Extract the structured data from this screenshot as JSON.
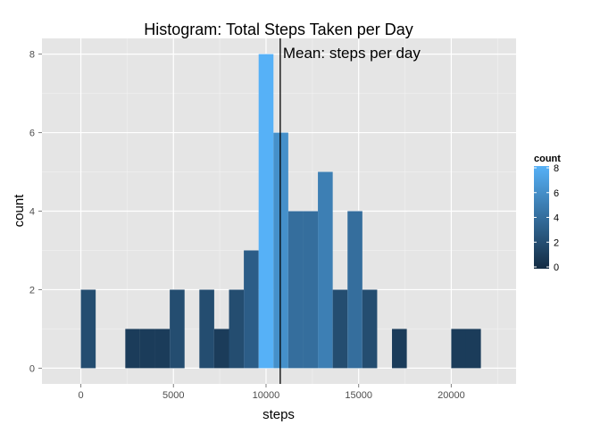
{
  "chart_data": {
    "type": "bar",
    "title": "Histogram: Total Steps Taken per Day",
    "xlabel": "steps",
    "ylabel": "count",
    "xlim": [
      -2100,
      23500
    ],
    "ylim": [
      -0.4,
      8.4
    ],
    "x_ticks": [
      0,
      5000,
      10000,
      15000,
      20000
    ],
    "x_tick_labels": [
      "0",
      "5000",
      "10000",
      "15000",
      "20000"
    ],
    "y_ticks": [
      0,
      2,
      4,
      6,
      8
    ],
    "y_tick_labels": [
      "0",
      "2",
      "4",
      "6",
      "8"
    ],
    "bin_width": 800,
    "bins": [
      {
        "x0": 0,
        "x1": 800,
        "count": 2
      },
      {
        "x0": 2400,
        "x1": 3200,
        "count": 1
      },
      {
        "x0": 3200,
        "x1": 4000,
        "count": 1
      },
      {
        "x0": 4000,
        "x1": 4800,
        "count": 1
      },
      {
        "x0": 4800,
        "x1": 5600,
        "count": 2
      },
      {
        "x0": 6400,
        "x1": 7200,
        "count": 2
      },
      {
        "x0": 7200,
        "x1": 8000,
        "count": 1
      },
      {
        "x0": 8000,
        "x1": 8800,
        "count": 2
      },
      {
        "x0": 8800,
        "x1": 9600,
        "count": 3
      },
      {
        "x0": 9600,
        "x1": 10400,
        "count": 8
      },
      {
        "x0": 10400,
        "x1": 11200,
        "count": 6
      },
      {
        "x0": 11200,
        "x1": 12000,
        "count": 4
      },
      {
        "x0": 12000,
        "x1": 12800,
        "count": 4
      },
      {
        "x0": 12800,
        "x1": 13600,
        "count": 5
      },
      {
        "x0": 13600,
        "x1": 14400,
        "count": 2
      },
      {
        "x0": 14400,
        "x1": 15200,
        "count": 4
      },
      {
        "x0": 15200,
        "x1": 16000,
        "count": 2
      },
      {
        "x0": 16800,
        "x1": 17600,
        "count": 1
      },
      {
        "x0": 20000,
        "x1": 20800,
        "count": 1
      },
      {
        "x0": 20800,
        "x1": 21600,
        "count": 1
      }
    ],
    "mean_line": {
      "x": 10766,
      "label": "Mean: steps per day",
      "color": "#000000"
    },
    "legend": {
      "title": "count",
      "position": "right",
      "tick_values": [
        0,
        2,
        4,
        6,
        8
      ],
      "tick_labels": [
        "0",
        "2",
        "4",
        "6",
        "8"
      ]
    },
    "colors": {
      "low": "#132B43",
      "high": "#56B1F7",
      "panel_bg": "#E5E5E5",
      "grid_major": "#FFFFFF",
      "grid_minor": "#F2F2F2",
      "tick_label": "#4D4D4D"
    },
    "grid": true
  }
}
